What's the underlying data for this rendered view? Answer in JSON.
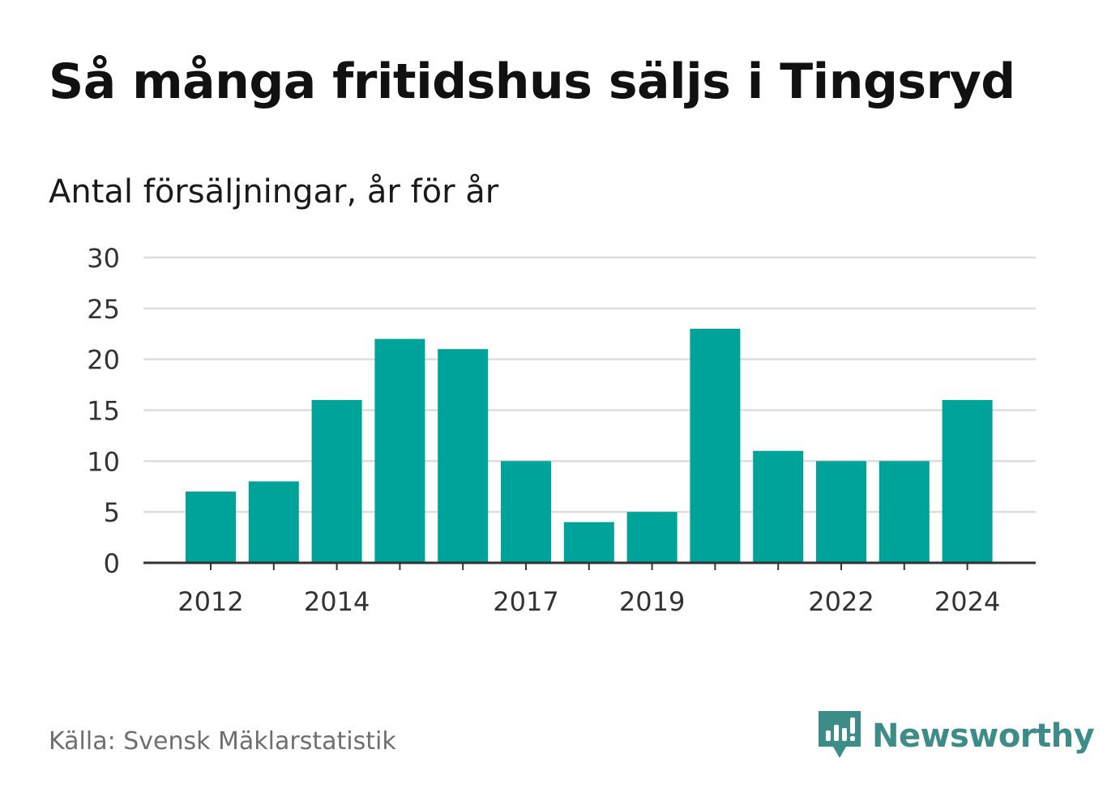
{
  "title": "Så många fritidshus säljs i Tingsryd",
  "subtitle": "Antal försäljningar, år för år",
  "source": "Källa: Svensk Mäklarstatistik",
  "brand": {
    "name": "Newsworthy",
    "icon": "newsworthy-logo-icon",
    "color": "#3c8c88"
  },
  "colors": {
    "bar": "#00a39a",
    "grid": "#dddddd",
    "axis": "#333333",
    "text": "#333333"
  },
  "chart_data": {
    "type": "bar",
    "categories": [
      "2012",
      "2013",
      "2014",
      "2015",
      "2016",
      "2017",
      "2018",
      "2019",
      "2020",
      "2021",
      "2022",
      "2023",
      "2024"
    ],
    "values": [
      7,
      8,
      16,
      22,
      21,
      10,
      4,
      5,
      23,
      11,
      10,
      10,
      16
    ],
    "xtick_labels": [
      "2012",
      "2014",
      "2017",
      "2019",
      "2022",
      "2024"
    ],
    "yticks": [
      0,
      5,
      10,
      15,
      20,
      25,
      30
    ],
    "ylim": [
      0,
      30
    ],
    "xlabel": "",
    "ylabel": "",
    "grid": true,
    "legend": false
  }
}
